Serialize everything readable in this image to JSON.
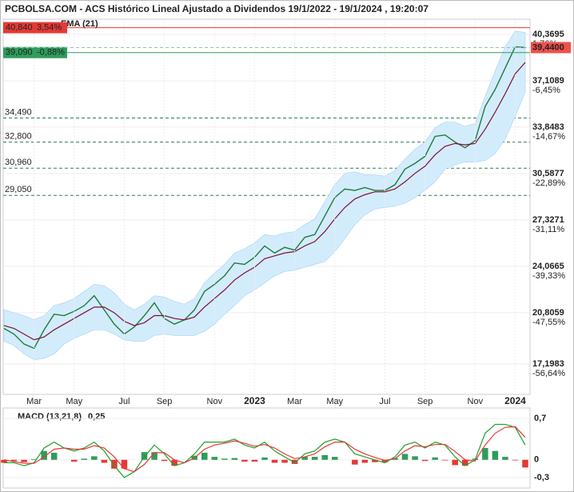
{
  "chart_data": [
    {
      "type": "line",
      "title": "PCBOLSA.COM - ACS Histórico Lineal Ajustado a Dividendos 19/1/2022 - 19/1/2024 , 19:20:07",
      "categories": [
        null,
        null,
        null,
        "Mar",
        null,
        null,
        null,
        "May",
        null,
        null,
        null,
        null,
        "Jul",
        null,
        null,
        null,
        "Sep",
        null,
        null,
        null,
        null,
        "Nov",
        null,
        null,
        null,
        "2023",
        null,
        null,
        null,
        "Mar",
        null,
        null,
        null,
        "May",
        null,
        null,
        null,
        null,
        "Jul",
        null,
        null,
        null,
        "Sep",
        null,
        null,
        null,
        null,
        "Nov",
        null,
        null,
        null,
        "2024",
        null
      ],
      "series": [
        {
          "color": "#1f7a3c",
          "values": [
            19.7,
            19.3,
            18.6,
            18.3,
            19.6,
            20.7,
            20.6,
            20.9,
            21.3,
            22.0,
            21.0,
            20.0,
            19.3,
            19.8,
            20.6,
            21.5,
            20.4,
            20.0,
            20.3,
            21.0,
            22.3,
            22.8,
            23.4,
            24.3,
            24.2,
            24.7,
            25.5,
            25.0,
            25.4,
            25.2,
            26.1,
            26.3,
            27.6,
            28.9,
            29.5,
            29.4,
            29.6,
            29.4,
            29.4,
            29.8,
            30.9,
            31.3,
            31.8,
            33.2,
            33.3,
            32.8,
            32.4,
            32.9,
            35.3,
            36.5,
            38.0,
            39.5,
            39.44
          ]
        },
        {
          "name": "EMA (21)",
          "color": "#7b1038",
          "values": [
            19.9,
            19.7,
            19.3,
            18.9,
            19.1,
            19.6,
            20.0,
            20.4,
            20.8,
            21.2,
            21.2,
            20.8,
            20.2,
            19.9,
            20.1,
            20.6,
            20.6,
            20.4,
            20.3,
            20.5,
            21.2,
            21.8,
            22.4,
            23.1,
            23.6,
            24.0,
            24.6,
            24.8,
            25.0,
            25.1,
            25.5,
            25.8,
            26.5,
            27.4,
            28.2,
            28.8,
            29.1,
            29.3,
            29.3,
            29.5,
            30.0,
            30.6,
            31.1,
            31.9,
            32.5,
            32.7,
            32.6,
            32.7,
            33.7,
            34.9,
            36.2,
            37.6,
            38.4
          ]
        }
      ],
      "band": {
        "color": "#d3ecfc",
        "upper": [
          21.0,
          20.8,
          20.6,
          20.3,
          20.6,
          21.3,
          21.5,
          21.8,
          22.3,
          22.8,
          22.7,
          22.2,
          21.4,
          21.0,
          21.4,
          22.0,
          21.9,
          21.6,
          21.4,
          21.8,
          22.9,
          23.6,
          24.2,
          25.0,
          25.3,
          25.7,
          26.3,
          26.2,
          26.4,
          26.5,
          27.0,
          27.4,
          28.6,
          29.8,
          30.6,
          30.7,
          30.5,
          30.5,
          30.4,
          30.8,
          31.6,
          32.3,
          32.8,
          33.8,
          34.2,
          34.2,
          33.9,
          34.1,
          36.0,
          37.8,
          39.5,
          40.6,
          40.5
        ],
        "lower": [
          18.8,
          18.5,
          17.9,
          17.5,
          17.6,
          17.9,
          18.6,
          19.0,
          19.3,
          19.6,
          19.6,
          19.3,
          18.9,
          18.8,
          18.8,
          19.2,
          19.3,
          19.2,
          19.2,
          19.2,
          19.5,
          20.0,
          20.7,
          21.3,
          22.0,
          22.4,
          22.9,
          23.4,
          23.7,
          23.8,
          24.0,
          24.2,
          24.4,
          25.1,
          26.0,
          27.0,
          27.7,
          28.1,
          28.2,
          28.3,
          28.5,
          28.9,
          29.4,
          30.0,
          30.9,
          31.2,
          31.4,
          31.4,
          31.5,
          32.0,
          33.0,
          34.6,
          36.3
        ]
      },
      "ylim": [
        15.23,
        41.38
      ],
      "yticks": [
        {
          "value": 40.3695,
          "label": "40,3695"
        },
        {
          "value": 37.1089,
          "label": "37,1089"
        },
        {
          "value": 33.8483,
          "label": "33,8483"
        },
        {
          "value": 30.5877,
          "label": "30,5877"
        },
        {
          "value": 27.3271,
          "label": "27,3271"
        },
        {
          "value": 24.0665,
          "label": "24,0665"
        },
        {
          "value": 20.8059,
          "label": "20,8059"
        },
        {
          "value": 17.1983,
          "label": "17,1983"
        }
      ],
      "ytick_changes": [
        "1,76%",
        "-6,45%",
        "-14,67%",
        "-22,89%",
        "-31,11%",
        "-39,33%",
        "-47,55%",
        "-56,64%"
      ],
      "levels": [
        {
          "value": 34.49,
          "label": "34,490"
        },
        {
          "value": 32.8,
          "label": "32,800"
        },
        {
          "value": 30.96,
          "label": "30,960"
        },
        {
          "value": 29.05,
          "label": "29,050"
        }
      ],
      "high_line": {
        "value": 40.84,
        "label": "40,840",
        "change": "3,54%",
        "color": "#e53935"
      },
      "low_line": {
        "value": 39.09,
        "label": "39,090",
        "change": "-0,88%",
        "color": "#2e9d5b"
      },
      "last": {
        "value": 39.44,
        "label": "39,4400",
        "color": "#f0504a"
      }
    },
    {
      "type": "macd",
      "title": "MACD (13,21,8)",
      "last_label": "0,25",
      "series": [
        {
          "color": "#1fa12b",
          "values": [
            -0.05,
            -0.05,
            -0.1,
            -0.05,
            0.2,
            0.3,
            0.2,
            0.15,
            0.2,
            0.3,
            0.15,
            -0.1,
            -0.3,
            -0.2,
            0.05,
            0.25,
            0.1,
            -0.1,
            -0.05,
            0.1,
            0.3,
            0.3,
            0.3,
            0.35,
            0.25,
            0.2,
            0.3,
            0.15,
            0.05,
            -0.05,
            0.1,
            0.15,
            0.3,
            0.35,
            0.3,
            0.1,
            0.05,
            0.0,
            -0.05,
            0.05,
            0.25,
            0.3,
            0.2,
            0.3,
            0.25,
            0.05,
            -0.1,
            0.0,
            0.45,
            0.6,
            0.6,
            0.55,
            0.25
          ]
        },
        {
          "color": "#e53935",
          "values": [
            0.0,
            -0.03,
            -0.06,
            -0.06,
            0.05,
            0.18,
            0.2,
            0.18,
            0.18,
            0.24,
            0.2,
            0.05,
            -0.15,
            -0.2,
            -0.08,
            0.12,
            0.12,
            0.0,
            -0.05,
            0.03,
            0.18,
            0.25,
            0.28,
            0.32,
            0.28,
            0.23,
            0.26,
            0.2,
            0.1,
            0.02,
            0.05,
            0.1,
            0.22,
            0.3,
            0.3,
            0.18,
            0.1,
            0.04,
            -0.01,
            0.02,
            0.15,
            0.24,
            0.22,
            0.26,
            0.26,
            0.14,
            0.0,
            -0.02,
            0.25,
            0.45,
            0.55,
            0.56,
            0.38
          ]
        }
      ],
      "histogram": {
        "up_color": "#2e9d5b",
        "down_color": "#e53935",
        "values": [
          -0.05,
          -0.02,
          -0.04,
          0.01,
          0.15,
          0.12,
          0,
          -0.03,
          0.02,
          0.06,
          -0.05,
          -0.15,
          -0.15,
          0,
          0.13,
          0.13,
          -0.02,
          -0.1,
          0,
          0.07,
          0.12,
          0.05,
          0.02,
          0.03,
          -0.03,
          -0.03,
          0.04,
          -0.05,
          -0.05,
          -0.07,
          0.05,
          0.05,
          0.08,
          0.05,
          0,
          -0.08,
          -0.05,
          -0.04,
          -0.04,
          0.03,
          0.1,
          0.06,
          -0.02,
          0.04,
          -0.01,
          -0.09,
          -0.1,
          0.02,
          0.2,
          0.15,
          0.05,
          -0.01,
          -0.13
        ]
      },
      "ylim": [
        -0.45,
        0.85
      ],
      "yticks": [
        {
          "value": 0.7,
          "label": "0,7"
        },
        0,
        {
          "value": -0.3,
          "label": "-0,3"
        }
      ]
    }
  ]
}
